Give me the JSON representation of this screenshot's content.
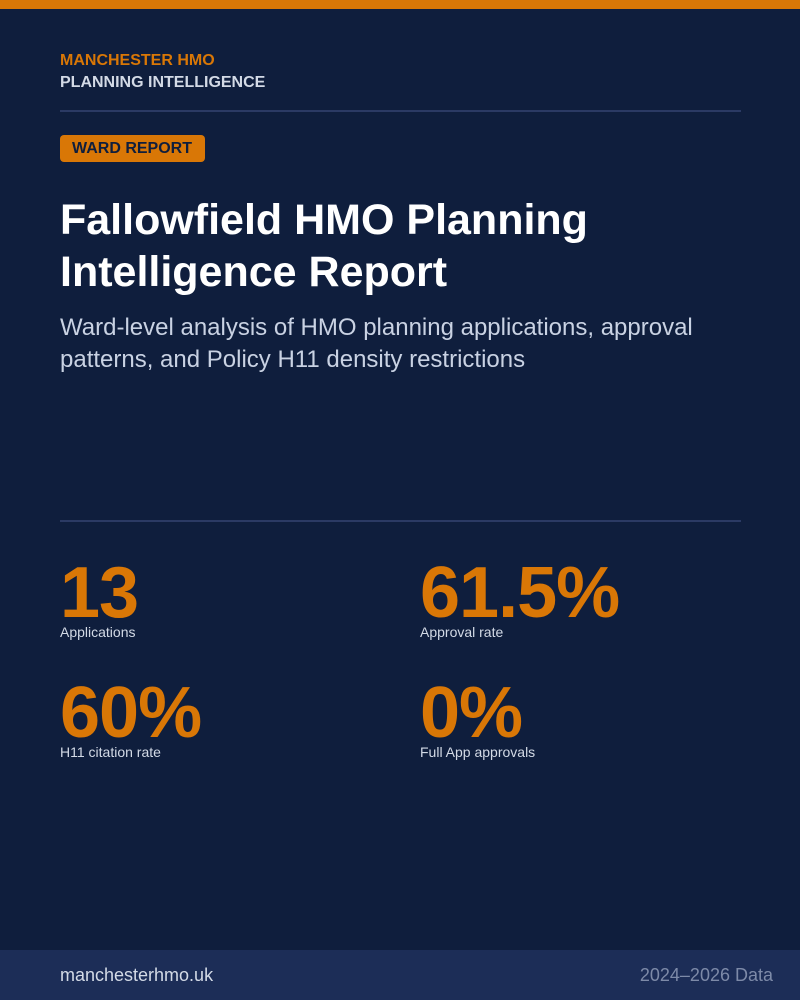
{
  "brand": {
    "name": "MANCHESTER HMO",
    "tagline": "PLANNING INTELLIGENCE"
  },
  "badge": "WARD REPORT",
  "title": "Fallowfield HMO Planning Intelligence Report",
  "subtitle": "Ward-level analysis of HMO planning applications, approval patterns, and Policy H11 density restrictions",
  "stats": [
    {
      "value": "13",
      "label": "Applications"
    },
    {
      "value": "61.5%",
      "label": "Approval rate"
    },
    {
      "value": "60%",
      "label": "H11 citation rate"
    },
    {
      "value": "0%",
      "label": "Full App approvals"
    }
  ],
  "footer": {
    "url": "manchesterhmo.uk",
    "data_range": "2024–2026 Data"
  },
  "colors": {
    "background": "#0f1e3d",
    "accent": "#d97706",
    "footer_bg": "#1c2d57"
  }
}
